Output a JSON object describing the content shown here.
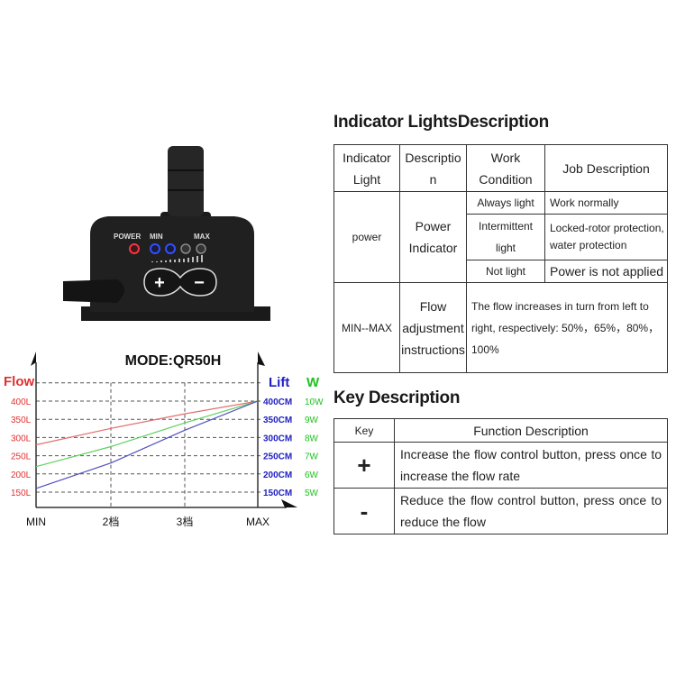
{
  "device": {
    "labels": {
      "power": "POWER",
      "min": "MIN",
      "max": "MAX"
    },
    "buttons": {
      "plus": "+",
      "minus": "−"
    },
    "led_colors": {
      "power": "#ff3040",
      "min_on": "#3050ff",
      "off": "#777777"
    }
  },
  "indicator_section": {
    "title": "Indicator LightsDescription",
    "headers": [
      "Indicator Light",
      "Description",
      "Work Condition",
      "Job Description"
    ],
    "power_row": {
      "indicator": "power",
      "description": "Power Indicator",
      "conditions": [
        {
          "condition": "Always light",
          "job": "Work normally"
        },
        {
          "condition": "Intermittent light",
          "job": "Locked-rotor protection, water protection"
        },
        {
          "condition": "Not light",
          "job": "Power is not applied"
        }
      ]
    },
    "flow_row": {
      "indicator": "MIN--MAX",
      "description": "Flow adjustment instructions",
      "job": "The flow increases in turn from left to right, respectively: 50%，65%，80%，100%"
    }
  },
  "key_section": {
    "title": "Key Description",
    "headers": [
      "Key",
      "Function Description"
    ],
    "rows": [
      {
        "key": "+",
        "function": "Increase the flow control button, press once to increase the flow rate"
      },
      {
        "key": "-",
        "function": "Reduce the flow control button, press once to reduce the flow"
      }
    ]
  },
  "chart_data": {
    "type": "line",
    "title": "MODE:QR50H",
    "categories": [
      "MIN",
      "2档",
      "3档",
      "MAX"
    ],
    "left_axis": {
      "label": "Flow",
      "ticks": [
        "400L",
        "350L",
        "300L",
        "250L",
        "200L",
        "150L"
      ],
      "range": [
        150,
        400
      ],
      "color": "#e03030"
    },
    "right_axis_lift": {
      "label": "Lift",
      "ticks": [
        "400CM",
        "350CM",
        "300CM",
        "250CM",
        "200CM",
        "150CM"
      ],
      "color": "#2020c0"
    },
    "right_axis_power": {
      "label": "W",
      "ticks": [
        "10W",
        "9W",
        "8W",
        "7W",
        "6W",
        "5W"
      ],
      "color": "#20c020"
    },
    "grid": true,
    "series": [
      {
        "name": "Flow",
        "unit": "L",
        "values": [
          280,
          325,
          365,
          400
        ],
        "color": "#e07070"
      },
      {
        "name": "W",
        "unit": "W",
        "values": [
          6.4,
          7.5,
          8.8,
          10
        ],
        "color": "#60d060"
      },
      {
        "name": "Lift",
        "unit": "CM",
        "values": [
          160,
          230,
          320,
          400
        ],
        "color": "#5050c0"
      }
    ]
  }
}
